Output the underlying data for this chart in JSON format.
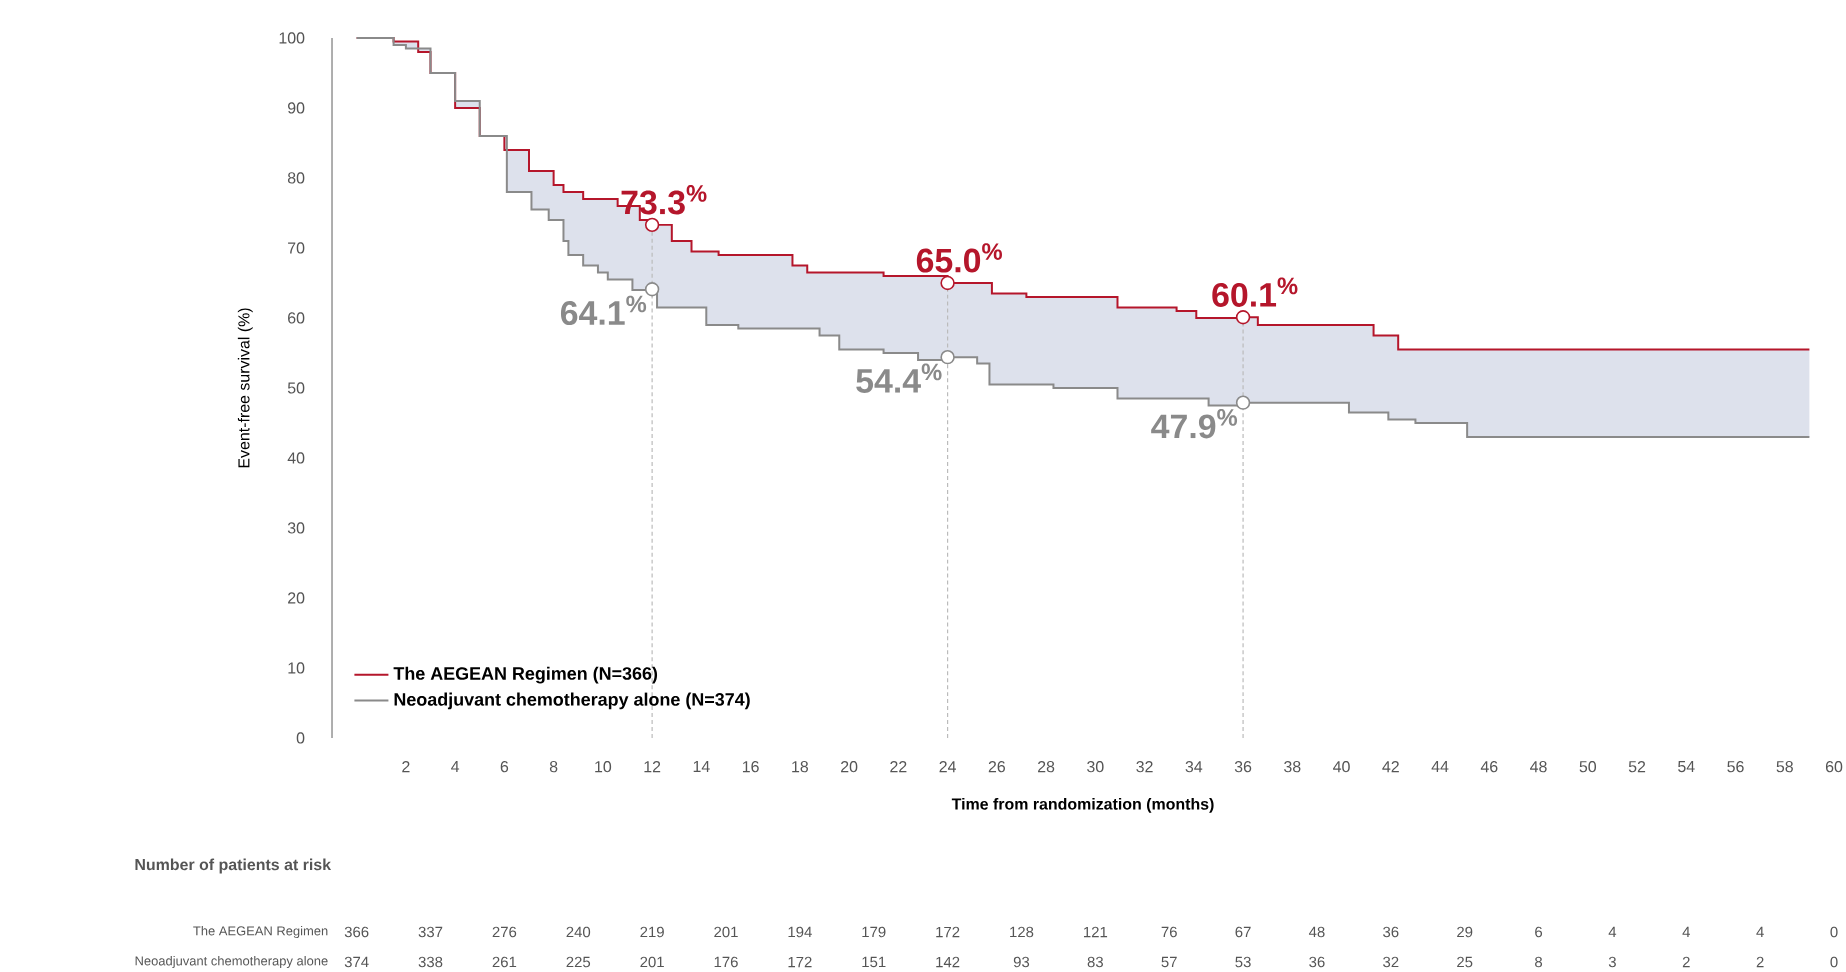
{
  "chart_data": {
    "type": "step",
    "xlabel": "Time from randomization (months)",
    "ylabel": "Event-free survival (%)",
    "xlim": [
      -1,
      60
    ],
    "ylim": [
      0,
      100
    ],
    "xticks": [
      2,
      4,
      6,
      8,
      10,
      12,
      14,
      16,
      18,
      20,
      22,
      24,
      26,
      28,
      30,
      32,
      34,
      36,
      38,
      40,
      42,
      44,
      46,
      48,
      50,
      52,
      54,
      56,
      58,
      60
    ],
    "yticks": [
      0,
      10,
      20,
      30,
      40,
      50,
      60,
      70,
      80,
      90,
      100
    ],
    "legend": "bottom left",
    "series": [
      {
        "name": "The AEGEAN Regimen (N=366)",
        "color": "#b5162b",
        "x": [
          0,
          1.5,
          2.5,
          3,
          4,
          5,
          6,
          7,
          8,
          8.4,
          9.2,
          10.6,
          11.5,
          12,
          12.8,
          13.6,
          14.7,
          17.7,
          18.3,
          19.9,
          21.4,
          24,
          25.8,
          27.2,
          30.9,
          33.3,
          34.1,
          36,
          36.6,
          41.3,
          42.3,
          59
        ],
        "values": [
          100,
          99.5,
          98,
          95,
          90,
          86,
          84,
          81,
          79,
          78,
          77,
          76,
          74,
          73.3,
          71,
          69.5,
          69,
          67.5,
          66.5,
          66.5,
          66,
          65,
          63.5,
          63,
          61.5,
          61,
          60,
          60.1,
          59,
          57.5,
          55.5,
          55.5
        ]
      },
      {
        "name": "Neoadjuvant chemotherapy alone (N=374)",
        "color": "#8a8a8a",
        "x": [
          0,
          1.5,
          2,
          3,
          4,
          5,
          6.1,
          7.1,
          7.8,
          8.4,
          8.6,
          9.2,
          9.8,
          10.2,
          11.2,
          12,
          12.2,
          13.8,
          14.2,
          15.5,
          18.8,
          19.6,
          21.4,
          22.8,
          24,
          25.2,
          25.7,
          28.3,
          30.9,
          34.6,
          36,
          40.3,
          41.9,
          43,
          45.1,
          59
        ],
        "values": [
          100,
          99,
          98.5,
          95,
          91,
          86,
          78,
          75.5,
          74,
          71,
          69,
          67.5,
          66.5,
          65.5,
          64,
          64.1,
          61.5,
          61.5,
          59,
          58.5,
          57.5,
          55.5,
          55,
          54,
          54.4,
          53.5,
          50.5,
          50,
          48.5,
          47.5,
          47.9,
          46.5,
          45.5,
          45,
          43,
          43
        ]
      }
    ],
    "ref_lines": [
      {
        "axis": "x",
        "value": 12,
        "color": "#bbbbbb",
        "line_style": "dashed"
      },
      {
        "axis": "x",
        "value": 24,
        "color": "#bbbbbb",
        "line_style": "dashed"
      },
      {
        "axis": "x",
        "value": 36,
        "color": "#bbbbbb",
        "line_style": "dashed"
      }
    ],
    "annotations": [
      {
        "text": "73.3$^{%}$",
        "x": 12,
        "y": 73.3
      },
      {
        "text": "64.1$^{%}$",
        "x": 12,
        "y": 64.1
      },
      {
        "text": "65.0$^{%}$",
        "x": 24,
        "y": 65.0
      },
      {
        "text": "54.4$^{%}$",
        "x": 24,
        "y": 54.4
      },
      {
        "text": "60.1$^{%}$",
        "x": 36,
        "y": 60.1
      },
      {
        "text": "47.9$^{%}$",
        "x": 36,
        "y": 47.9
      },
      "Number of patients at risk",
      "The AEGEAN Regimen",
      "366",
      "337",
      "276",
      "240",
      "219",
      "201",
      "194",
      "179",
      "172",
      "128",
      "121",
      "76",
      "67",
      "48",
      "36",
      "29",
      "6",
      "4",
      "4",
      "4",
      "0",
      "Neoadjuvant chemotherapy alone",
      "374",
      "338",
      "261",
      "225",
      "201",
      "176",
      "172",
      "151",
      "142",
      "93",
      "83",
      "57",
      "53",
      "36",
      "32",
      "25",
      "8",
      "3",
      "2",
      "2",
      "0"
    ]
  }
}
